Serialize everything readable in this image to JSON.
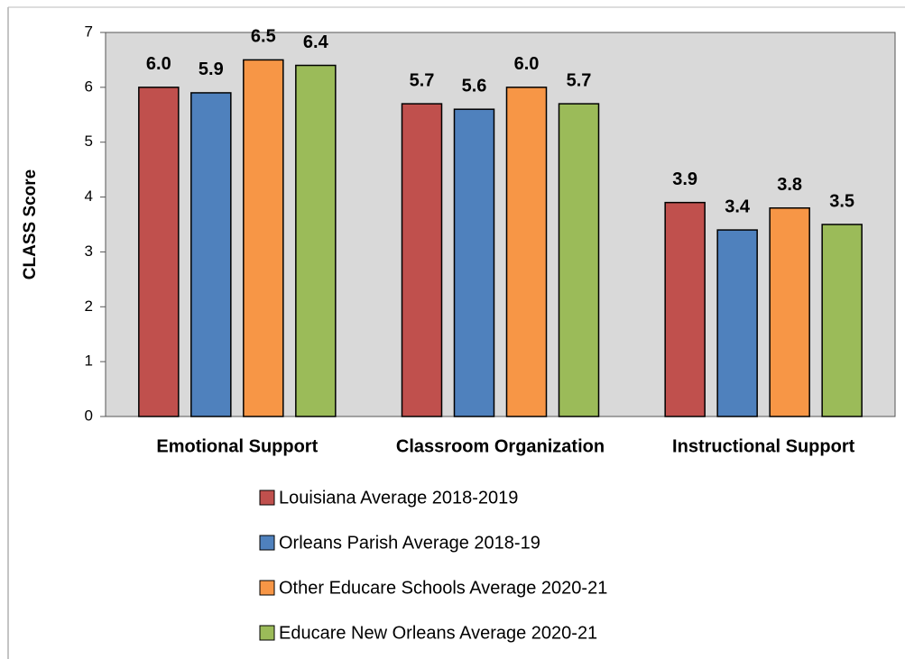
{
  "chart_data": {
    "type": "bar",
    "ylabel": "CLASS Score",
    "categories": [
      "Emotional Support",
      "Classroom Organization",
      "Instructional Support"
    ],
    "series": [
      {
        "name": "Louisiana Average 2018-2019",
        "color": "#c0504d",
        "values": [
          6.0,
          5.7,
          3.9
        ],
        "value_labels": [
          "6.0",
          "5.7",
          "3.9"
        ]
      },
      {
        "name": "Orleans Parish Average 2018-19",
        "color": "#4f81bd",
        "values": [
          5.9,
          5.6,
          3.4
        ],
        "value_labels": [
          "5.9",
          "5.6",
          "3.4"
        ]
      },
      {
        "name": "Other Educare Schools Average 2020-21",
        "color": "#f79646",
        "values": [
          6.5,
          6.0,
          3.8
        ],
        "value_labels": [
          "6.5",
          "6.0",
          "3.8"
        ]
      },
      {
        "name": "Educare New Orleans Average 2020-21",
        "color": "#9bbb59",
        "values": [
          6.4,
          5.7,
          3.5
        ],
        "value_labels": [
          "6.4",
          "5.7",
          "3.5"
        ]
      }
    ],
    "ylim": [
      0,
      7
    ],
    "yticks": [
      0,
      1,
      2,
      3,
      4,
      5,
      6,
      7
    ],
    "legend": "bottom",
    "plot_background": "#d9d9d9"
  }
}
